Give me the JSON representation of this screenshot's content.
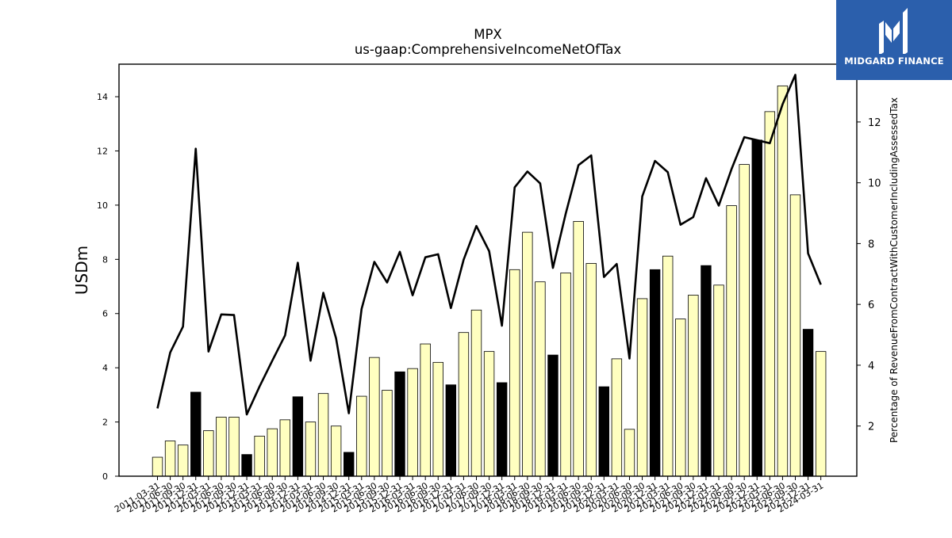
{
  "chart_data": {
    "type": "bar",
    "title": "MPX",
    "subtitle": "us-gaap:ComprehensiveIncomeNetOfTax",
    "ylabel": "USDm",
    "y2label": "Percentage of RevenueFromContractWithCustomerIncludingAssessedTax",
    "ylim": [
      0,
      15.2
    ],
    "y2lim": [
      0.35,
      13.9
    ],
    "yticks": [
      "0",
      "2",
      "4",
      "6",
      "8",
      "10",
      "12",
      "14"
    ],
    "y2ticks": [
      "2",
      "4",
      "6",
      "8",
      "10",
      "12"
    ],
    "grid": false,
    "colors": {
      "bar_light": "#ffffc0",
      "bar_dark": "#000000",
      "line": "#000000",
      "logo_bg": "#2b5fac"
    },
    "categories": [
      "2011-03-31",
      "2011-06-30",
      "2011-09-30",
      "2011-12-31",
      "2012-03-31",
      "2012-06-30",
      "2012-09-30",
      "2012-12-31",
      "2013-03-31",
      "2013-06-30",
      "2013-09-30",
      "2013-12-31",
      "2014-03-31",
      "2014-06-30",
      "2014-09-30",
      "2014-12-31",
      "2015-03-31",
      "2015-06-30",
      "2015-09-30",
      "2015-12-31",
      "2016-03-31",
      "2016-06-30",
      "2016-09-30",
      "2016-12-31",
      "2017-03-31",
      "2017-06-30",
      "2017-09-30",
      "2017-12-31",
      "2018-03-31",
      "2018-06-30",
      "2018-09-30",
      "2018-12-31",
      "2019-03-31",
      "2019-06-30",
      "2019-09-30",
      "2019-12-31",
      "2020-03-31",
      "2020-06-30",
      "2020-09-30",
      "2020-12-31",
      "2021-03-31",
      "2021-06-30",
      "2021-09-30",
      "2021-12-31",
      "2022-03-31",
      "2022-06-30",
      "2022-09-30",
      "2022-12-31",
      "2023-03-31",
      "2023-06-30",
      "2023-09-30",
      "2023-12-31",
      "2024-03-31"
    ],
    "series": [
      {
        "type": "bar",
        "values": [
          0.7,
          1.3,
          1.15,
          3.1,
          1.68,
          2.18,
          2.18,
          0.8,
          1.48,
          1.75,
          2.08,
          2.93,
          2.0,
          3.05,
          1.85,
          0.88,
          2.95,
          4.38,
          3.17,
          3.85,
          3.97,
          4.88,
          4.2,
          3.37,
          5.3,
          6.13,
          4.6,
          3.45,
          7.62,
          9.0,
          7.17,
          4.47,
          7.5,
          9.4,
          7.85,
          3.3,
          4.33,
          1.73,
          6.55,
          7.62,
          8.12,
          5.8,
          6.68,
          7.77,
          7.05,
          9.98,
          11.5,
          12.4,
          13.45,
          14.4,
          10.38,
          5.42,
          4.6
        ],
        "dark": [
          false,
          false,
          false,
          true,
          false,
          false,
          false,
          true,
          false,
          false,
          false,
          true,
          false,
          false,
          false,
          true,
          false,
          false,
          false,
          true,
          false,
          false,
          false,
          true,
          false,
          false,
          false,
          true,
          false,
          false,
          false,
          true,
          false,
          false,
          false,
          true,
          false,
          false,
          false,
          true,
          false,
          false,
          false,
          true,
          false,
          false,
          false,
          true,
          false,
          false,
          false,
          true,
          false
        ]
      },
      {
        "type": "line",
        "values": [
          2.58,
          4.42,
          5.27,
          11.12,
          4.45,
          5.67,
          5.65,
          2.38,
          3.3,
          4.15,
          4.98,
          7.37,
          4.15,
          6.38,
          4.88,
          2.42,
          5.85,
          7.4,
          6.72,
          7.73,
          6.3,
          7.55,
          7.65,
          5.88,
          7.47,
          8.58,
          7.75,
          5.3,
          9.85,
          10.37,
          9.98,
          7.2,
          8.98,
          10.58,
          10.9,
          6.9,
          7.33,
          4.22,
          9.55,
          10.72,
          10.35,
          8.62,
          8.87,
          10.15,
          9.25,
          10.45,
          11.5,
          11.4,
          11.3,
          12.58,
          13.55,
          7.68,
          6.65
        ]
      }
    ]
  },
  "logo": {
    "text": "MIDGARD FINANCE"
  }
}
